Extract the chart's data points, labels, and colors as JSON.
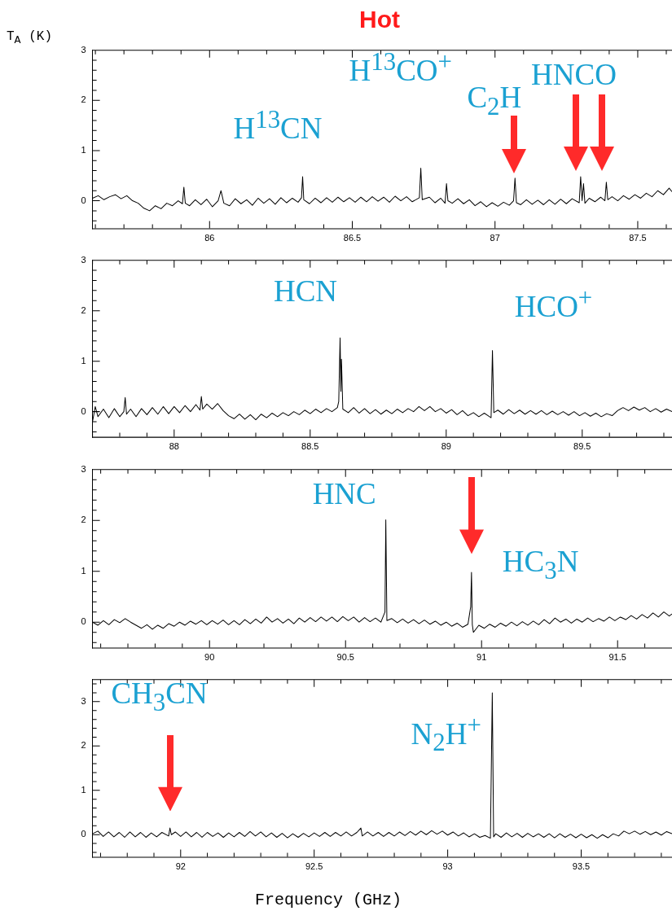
{
  "chart_data": [
    {
      "type": "line",
      "title": "Hot",
      "ylabel": "T$_{A}$ (K)",
      "color": "#000000",
      "marker": "none",
      "grid": false,
      "xlim": [
        85.59,
        87.62
      ],
      "ylim": [
        -0.55,
        3
      ],
      "xticks": [
        {
          "value": 85.6,
          "label": null
        },
        {
          "value": 85.7,
          "label": null
        },
        {
          "value": 85.8,
          "label": null
        },
        {
          "value": 85.9,
          "label": null
        },
        86,
        {
          "value": 86.1,
          "label": null
        },
        {
          "value": 86.2,
          "label": null
        },
        {
          "value": 86.3,
          "label": null
        },
        {
          "value": 86.4,
          "label": null
        },
        86.5,
        {
          "value": 86.6,
          "label": null
        },
        {
          "value": 86.7,
          "label": null
        },
        {
          "value": 86.8,
          "label": null
        },
        {
          "value": 86.9,
          "label": null
        },
        87,
        {
          "value": 87.1,
          "label": null
        },
        {
          "value": 87.2,
          "label": null
        },
        {
          "value": 87.3,
          "label": null
        },
        {
          "value": 87.4,
          "label": null
        },
        87.5,
        {
          "value": 87.6,
          "label": null
        }
      ],
      "yticks": [
        {
          "value": -0.4,
          "label": null
        },
        {
          "value": -0.2,
          "label": null
        },
        0,
        {
          "value": 0.2,
          "label": null
        },
        {
          "value": 0.4,
          "label": null
        },
        {
          "value": 0.6,
          "label": null
        },
        {
          "value": 0.8,
          "label": null
        },
        1,
        {
          "value": 1.2,
          "label": null
        },
        {
          "value": 1.4,
          "label": null
        },
        {
          "value": 1.6,
          "label": null
        },
        {
          "value": 1.8,
          "label": null
        },
        2,
        {
          "value": 2.2,
          "label": null
        },
        {
          "value": 2.4,
          "label": null
        },
        {
          "value": 2.6,
          "label": null
        },
        {
          "value": 2.8,
          "label": null
        },
        3
      ],
      "annotations": [
        "H$^{13}$CN",
        "H$^{13}$CO$^{+}$",
        "C$_{2}$H",
        "HNCO"
      ],
      "x": [
        85.59,
        85.61,
        85.63,
        85.65,
        85.67,
        85.69,
        85.71,
        85.73,
        85.75,
        85.77,
        85.79,
        85.81,
        85.83,
        85.85,
        85.87,
        85.89,
        85.905,
        85.91,
        85.915,
        85.93,
        85.95,
        85.97,
        85.99,
        86.01,
        86.03,
        86.04,
        86.05,
        86.07,
        86.09,
        86.11,
        86.13,
        86.15,
        86.17,
        86.19,
        86.21,
        86.23,
        86.25,
        86.27,
        86.29,
        86.31,
        86.322,
        86.326,
        86.33,
        86.35,
        86.37,
        86.39,
        86.41,
        86.43,
        86.45,
        86.47,
        86.49,
        86.51,
        86.53,
        86.55,
        86.57,
        86.59,
        86.61,
        86.63,
        86.65,
        86.67,
        86.69,
        86.71,
        86.735,
        86.74,
        86.745,
        86.77,
        86.79,
        86.81,
        86.825,
        86.83,
        86.835,
        86.85,
        86.87,
        86.89,
        86.91,
        86.93,
        86.95,
        86.97,
        86.99,
        87.01,
        87.03,
        87.05,
        87.065,
        87.07,
        87.075,
        87.09,
        87.11,
        87.13,
        87.15,
        87.17,
        87.19,
        87.21,
        87.23,
        87.25,
        87.27,
        87.295,
        87.3,
        87.305,
        87.31,
        87.315,
        87.33,
        87.35,
        87.37,
        87.385,
        87.39,
        87.395,
        87.41,
        87.43,
        87.45,
        87.47,
        87.49,
        87.51,
        87.53,
        87.55,
        87.57,
        87.59,
        87.61,
        87.62
      ],
      "values": [
        0.05,
        0.1,
        0.02,
        0.08,
        0.12,
        0.04,
        0.1,
        0,
        -0.05,
        -0.15,
        -0.2,
        -0.1,
        -0.16,
        -0.05,
        -0.1,
        0,
        -0.06,
        0.27,
        -0.05,
        -0.1,
        0.02,
        -0.08,
        0.03,
        -0.12,
        0,
        0.2,
        -0.05,
        -0.1,
        0.04,
        -0.06,
        0.02,
        -0.09,
        0.05,
        -0.05,
        0.04,
        -0.07,
        0.06,
        -0.04,
        0.05,
        -0.03,
        0.06,
        0.48,
        0.02,
        -0.06,
        0.05,
        -0.04,
        0.06,
        -0.03,
        0.07,
        -0.02,
        0.06,
        -0.03,
        0.07,
        -0.02,
        0.08,
        -0.01,
        0.07,
        -0.03,
        0.09,
        0,
        0.08,
        -0.02,
        0.06,
        0.65,
        0.02,
        0.07,
        -0.04,
        0.05,
        -0.05,
        0.34,
        0,
        -0.05,
        0.04,
        -0.06,
        0.02,
        -0.1,
        -0.02,
        -0.12,
        -0.04,
        -0.11,
        -0.03,
        -0.09,
        0,
        0.45,
        -0.04,
        -0.08,
        0.02,
        -0.07,
        0.01,
        -0.08,
        0.02,
        -0.07,
        0.03,
        -0.06,
        0.04,
        -0.04,
        0.48,
        0,
        0.34,
        -0.05,
        0.05,
        -0.02,
        0.07,
        0,
        0.37,
        0.02,
        0.08,
        0,
        0.1,
        0.03,
        0.12,
        0.05,
        0.15,
        0.08,
        0.2,
        0.12,
        0.25,
        0.18
      ]
    },
    {
      "type": "line",
      "color": "#000000",
      "marker": "none",
      "grid": false,
      "xlim": [
        87.7,
        89.83
      ],
      "ylim": [
        -0.5,
        3
      ],
      "xticks": [
        {
          "value": 87.7,
          "label": null
        },
        {
          "value": 87.8,
          "label": null
        },
        {
          "value": 87.9,
          "label": null
        },
        88,
        {
          "value": 88.1,
          "label": null
        },
        {
          "value": 88.2,
          "label": null
        },
        {
          "value": 88.3,
          "label": null
        },
        {
          "value": 88.4,
          "label": null
        },
        88.5,
        {
          "value": 88.6,
          "label": null
        },
        {
          "value": 88.7,
          "label": null
        },
        {
          "value": 88.8,
          "label": null
        },
        {
          "value": 88.9,
          "label": null
        },
        89,
        {
          "value": 89.1,
          "label": null
        },
        {
          "value": 89.2,
          "label": null
        },
        {
          "value": 89.3,
          "label": null
        },
        {
          "value": 89.4,
          "label": null
        },
        89.5,
        {
          "value": 89.6,
          "label": null
        },
        {
          "value": 89.7,
          "label": null
        },
        {
          "value": 89.8,
          "label": null
        }
      ],
      "yticks": [
        {
          "value": -0.4,
          "label": null
        },
        {
          "value": -0.2,
          "label": null
        },
        0,
        {
          "value": 0.2,
          "label": null
        },
        {
          "value": 0.4,
          "label": null
        },
        {
          "value": 0.6,
          "label": null
        },
        {
          "value": 0.8,
          "label": null
        },
        1,
        {
          "value": 1.2,
          "label": null
        },
        {
          "value": 1.4,
          "label": null
        },
        {
          "value": 1.6,
          "label": null
        },
        {
          "value": 1.8,
          "label": null
        },
        2,
        {
          "value": 2.2,
          "label": null
        },
        {
          "value": 2.4,
          "label": null
        },
        {
          "value": 2.6,
          "label": null
        },
        {
          "value": 2.8,
          "label": null
        },
        3
      ],
      "annotations": [
        "HCN",
        "HCO$^{+}$"
      ],
      "x": [
        87.7,
        87.71,
        87.72,
        87.74,
        87.76,
        87.78,
        87.8,
        87.815,
        87.82,
        87.825,
        87.84,
        87.86,
        87.88,
        87.9,
        87.92,
        87.94,
        87.96,
        87.98,
        88,
        88.02,
        88.04,
        88.06,
        88.08,
        88.095,
        88.1,
        88.105,
        88.12,
        88.14,
        88.16,
        88.18,
        88.2,
        88.22,
        88.24,
        88.26,
        88.28,
        88.3,
        88.32,
        88.34,
        88.36,
        88.38,
        88.4,
        88.42,
        88.44,
        88.46,
        88.48,
        88.5,
        88.52,
        88.54,
        88.56,
        88.58,
        88.6,
        88.605,
        88.61,
        88.613,
        88.615,
        88.62,
        88.64,
        88.66,
        88.68,
        88.7,
        88.72,
        88.74,
        88.76,
        88.78,
        88.8,
        88.82,
        88.84,
        88.86,
        88.88,
        88.9,
        88.92,
        88.94,
        88.96,
        88.98,
        89,
        89.02,
        89.04,
        89.06,
        89.08,
        89.1,
        89.12,
        89.14,
        89.165,
        89.17,
        89.175,
        89.19,
        89.21,
        89.23,
        89.25,
        89.27,
        89.29,
        89.31,
        89.33,
        89.35,
        89.37,
        89.39,
        89.41,
        89.43,
        89.45,
        89.47,
        89.49,
        89.51,
        89.53,
        89.55,
        89.57,
        89.59,
        89.61,
        89.63,
        89.65,
        89.67,
        89.69,
        89.71,
        89.73,
        89.75,
        89.77,
        89.79,
        89.81,
        89.83
      ],
      "values": [
        -0.2,
        0.1,
        -0.1,
        0.05,
        -0.12,
        0.06,
        -0.1,
        0,
        0.28,
        -0.05,
        0.05,
        -0.1,
        0.06,
        -0.06,
        0.08,
        -0.05,
        0.1,
        -0.04,
        0.1,
        -0.02,
        0.12,
        0,
        0.14,
        0.03,
        0.3,
        0.05,
        0.15,
        0.05,
        0.16,
        0.02,
        -0.08,
        -0.14,
        -0.05,
        -0.15,
        -0.06,
        -0.16,
        -0.05,
        -0.12,
        -0.03,
        -0.1,
        -0.02,
        -0.08,
        0,
        -0.06,
        0.03,
        -0.04,
        0.05,
        -0.02,
        0.06,
        0,
        0.08,
        0.2,
        1.46,
        0.4,
        1.04,
        0.05,
        -0.02,
        0.08,
        -0.03,
        0.06,
        -0.04,
        0.04,
        -0.05,
        0.03,
        -0.04,
        0.05,
        -0.02,
        0.06,
        0,
        0.1,
        0.02,
        0.1,
        0,
        0.06,
        -0.03,
        0.04,
        -0.06,
        0.02,
        -0.08,
        -0.02,
        -0.1,
        -0.03,
        -0.12,
        1.21,
        -0.02,
        0.03,
        -0.05,
        0.04,
        -0.04,
        0.03,
        -0.05,
        0.02,
        -0.05,
        0.02,
        -0.06,
        0.01,
        -0.06,
        0,
        -0.07,
        0,
        -0.08,
        -0.02,
        -0.09,
        -0.03,
        -0.1,
        -0.04,
        -0.08,
        0.02,
        0.08,
        0.02,
        0.09,
        0.03,
        0.08,
        0,
        0.06,
        -0.01,
        0.05,
        0
      ]
    },
    {
      "type": "line",
      "color": "#000000",
      "marker": "none",
      "grid": false,
      "xlim": [
        89.57,
        91.7
      ],
      "ylim": [
        -0.5,
        3
      ],
      "xticks": [
        {
          "value": 89.6,
          "label": null
        },
        {
          "value": 89.7,
          "label": null
        },
        {
          "value": 89.8,
          "label": null
        },
        {
          "value": 89.9,
          "label": null
        },
        90,
        {
          "value": 90.1,
          "label": null
        },
        {
          "value": 90.2,
          "label": null
        },
        {
          "value": 90.3,
          "label": null
        },
        {
          "value": 90.4,
          "label": null
        },
        90.5,
        {
          "value": 90.6,
          "label": null
        },
        {
          "value": 90.7,
          "label": null
        },
        {
          "value": 90.8,
          "label": null
        },
        {
          "value": 90.9,
          "label": null
        },
        91,
        {
          "value": 91.1,
          "label": null
        },
        {
          "value": 91.2,
          "label": null
        },
        {
          "value": 91.3,
          "label": null
        },
        {
          "value": 91.4,
          "label": null
        },
        91.5,
        {
          "value": 91.6,
          "label": null
        }
      ],
      "yticks": [
        {
          "value": -0.4,
          "label": null
        },
        {
          "value": -0.2,
          "label": null
        },
        0,
        {
          "value": 0.2,
          "label": null
        },
        {
          "value": 0.4,
          "label": null
        },
        {
          "value": 0.6,
          "label": null
        },
        {
          "value": 0.8,
          "label": null
        },
        1,
        {
          "value": 1.2,
          "label": null
        },
        {
          "value": 1.4,
          "label": null
        },
        {
          "value": 1.6,
          "label": null
        },
        {
          "value": 1.8,
          "label": null
        },
        2,
        {
          "value": 2.2,
          "label": null
        },
        {
          "value": 2.4,
          "label": null
        },
        {
          "value": 2.6,
          "label": null
        },
        {
          "value": 2.8,
          "label": null
        },
        3
      ],
      "annotations": [
        "HNC",
        "HC$_{3}$N"
      ],
      "x": [
        89.57,
        89.59,
        89.61,
        89.63,
        89.65,
        89.67,
        89.69,
        89.71,
        89.73,
        89.75,
        89.77,
        89.79,
        89.81,
        89.83,
        89.85,
        89.87,
        89.89,
        89.91,
        89.93,
        89.95,
        89.97,
        89.99,
        90.01,
        90.03,
        90.05,
        90.07,
        90.09,
        90.11,
        90.13,
        90.15,
        90.17,
        90.19,
        90.21,
        90.23,
        90.25,
        90.27,
        90.29,
        90.31,
        90.33,
        90.35,
        90.37,
        90.39,
        90.41,
        90.43,
        90.45,
        90.47,
        90.49,
        90.51,
        90.53,
        90.55,
        90.57,
        90.59,
        90.61,
        90.63,
        90.645,
        90.648,
        90.652,
        90.67,
        90.69,
        90.71,
        90.73,
        90.75,
        90.77,
        90.79,
        90.81,
        90.83,
        90.85,
        90.87,
        90.89,
        90.91,
        90.93,
        90.95,
        90.96,
        90.963,
        90.966,
        90.97,
        90.99,
        91.01,
        91.03,
        91.05,
        91.07,
        91.09,
        91.11,
        91.13,
        91.15,
        91.17,
        91.19,
        91.21,
        91.23,
        91.25,
        91.27,
        91.29,
        91.31,
        91.33,
        91.35,
        91.37,
        91.39,
        91.41,
        91.43,
        91.45,
        91.47,
        91.49,
        91.51,
        91.53,
        91.55,
        91.57,
        91.59,
        91.61,
        91.63,
        91.65,
        91.67,
        91.69,
        91.7
      ],
      "values": [
        0,
        -0.06,
        0.03,
        -0.05,
        0.05,
        -0.01,
        0.07,
        0,
        -0.06,
        -0.12,
        -0.05,
        -0.14,
        -0.06,
        -0.12,
        -0.03,
        -0.08,
        0,
        -0.06,
        0.02,
        -0.04,
        0.03,
        -0.05,
        0.03,
        -0.04,
        0.04,
        -0.05,
        0.03,
        -0.05,
        0.05,
        -0.03,
        0.06,
        -0.02,
        0.1,
        0,
        0.07,
        -0.02,
        0.06,
        -0.03,
        0.08,
        0,
        0.09,
        0.01,
        0.1,
        0.02,
        0.1,
        0.01,
        0.11,
        0.03,
        0.1,
        0,
        0.09,
        0.01,
        0.08,
        0,
        0.2,
        2.01,
        0.03,
        0.07,
        -0.01,
        0.06,
        -0.02,
        0.05,
        -0.03,
        0.04,
        -0.04,
        0.02,
        -0.06,
        0,
        -0.08,
        -0.02,
        -0.1,
        -0.04,
        0.3,
        0.98,
        -0.05,
        -0.2,
        -0.06,
        -0.12,
        -0.04,
        -0.1,
        -0.02,
        -0.08,
        0,
        -0.07,
        0.01,
        -0.06,
        0.02,
        -0.05,
        0.05,
        -0.03,
        0.08,
        0,
        0.06,
        -0.02,
        0.06,
        0,
        0.08,
        0.01,
        0.07,
        0.02,
        0.1,
        0.03,
        0.1,
        0.05,
        0.13,
        0.06,
        0.15,
        0.08,
        0.18,
        0.1,
        0.2,
        0.12,
        0.16
      ]
    },
    {
      "type": "line",
      "xlabel": "Frequency (GHz)",
      "color": "#000000",
      "marker": "none",
      "grid": false,
      "xlim": [
        91.67,
        93.84
      ],
      "ylim": [
        -0.5,
        3.5
      ],
      "xticks": [
        {
          "value": 91.7,
          "label": null
        },
        {
          "value": 91.8,
          "label": null
        },
        {
          "value": 91.9,
          "label": null
        },
        92,
        {
          "value": 92.1,
          "label": null
        },
        {
          "value": 92.2,
          "label": null
        },
        {
          "value": 92.3,
          "label": null
        },
        {
          "value": 92.4,
          "label": null
        },
        92.5,
        {
          "value": 92.6,
          "label": null
        },
        {
          "value": 92.7,
          "label": null
        },
        {
          "value": 92.8,
          "label": null
        },
        {
          "value": 92.9,
          "label": null
        },
        93,
        {
          "value": 93.1,
          "label": null
        },
        {
          "value": 93.2,
          "label": null
        },
        {
          "value": 93.3,
          "label": null
        },
        {
          "value": 93.4,
          "label": null
        },
        93.5,
        {
          "value": 93.6,
          "label": null
        },
        {
          "value": 93.7,
          "label": null
        },
        {
          "value": 93.8,
          "label": null
        }
      ],
      "yticks": [
        {
          "value": -0.4,
          "label": null
        },
        {
          "value": -0.2,
          "label": null
        },
        0,
        {
          "value": 0.2,
          "label": null
        },
        {
          "value": 0.4,
          "label": null
        },
        {
          "value": 0.6,
          "label": null
        },
        {
          "value": 0.8,
          "label": null
        },
        1,
        {
          "value": 1.2,
          "label": null
        },
        {
          "value": 1.4,
          "label": null
        },
        {
          "value": 1.6,
          "label": null
        },
        {
          "value": 1.8,
          "label": null
        },
        2,
        {
          "value": 2.2,
          "label": null
        },
        {
          "value": 2.4,
          "label": null
        },
        {
          "value": 2.6,
          "label": null
        },
        {
          "value": 2.8,
          "label": null
        },
        3,
        {
          "value": 3.2,
          "label": null
        },
        {
          "value": 3.4,
          "label": null
        }
      ],
      "annotations": [
        "CH$_{3}$CN",
        "N$_{2}$H$^{+}$"
      ],
      "x": [
        91.67,
        91.69,
        91.71,
        91.73,
        91.75,
        91.77,
        91.79,
        91.81,
        91.83,
        91.85,
        91.87,
        91.89,
        91.91,
        91.93,
        91.955,
        91.96,
        91.965,
        91.98,
        92,
        92.02,
        92.04,
        92.06,
        92.08,
        92.1,
        92.12,
        92.14,
        92.16,
        92.18,
        92.2,
        92.22,
        92.24,
        92.26,
        92.28,
        92.3,
        92.32,
        92.34,
        92.36,
        92.38,
        92.4,
        92.42,
        92.44,
        92.46,
        92.48,
        92.5,
        92.52,
        92.54,
        92.56,
        92.58,
        92.6,
        92.62,
        92.64,
        92.66,
        92.675,
        92.68,
        92.7,
        92.72,
        92.74,
        92.76,
        92.78,
        92.8,
        92.82,
        92.84,
        92.86,
        92.88,
        92.9,
        92.92,
        92.94,
        92.96,
        92.98,
        93,
        93.02,
        93.04,
        93.06,
        93.08,
        93.1,
        93.12,
        93.14,
        93.16,
        93.167,
        93.172,
        93.18,
        93.2,
        93.22,
        93.24,
        93.26,
        93.28,
        93.3,
        93.32,
        93.34,
        93.36,
        93.38,
        93.4,
        93.42,
        93.44,
        93.46,
        93.48,
        93.5,
        93.52,
        93.54,
        93.56,
        93.58,
        93.6,
        93.62,
        93.64,
        93.66,
        93.68,
        93.7,
        93.72,
        93.74,
        93.76,
        93.78,
        93.8,
        93.82,
        93.84
      ],
      "values": [
        0.02,
        0.08,
        -0.04,
        0.06,
        -0.05,
        0.05,
        -0.06,
        0.06,
        -0.05,
        0.05,
        -0.06,
        0.04,
        -0.05,
        0.05,
        -0.03,
        0.15,
        0,
        0.06,
        -0.04,
        0.06,
        -0.05,
        0.05,
        -0.06,
        0.05,
        -0.04,
        0.04,
        -0.06,
        0.04,
        -0.05,
        0.05,
        -0.04,
        0.07,
        -0.03,
        0.06,
        -0.05,
        0.04,
        -0.06,
        0.03,
        -0.07,
        0.02,
        -0.06,
        0.03,
        -0.05,
        0.04,
        -0.04,
        0.05,
        -0.04,
        0.05,
        -0.03,
        0.06,
        -0.03,
        0.05,
        0.15,
        -0.03,
        0.06,
        -0.03,
        0.05,
        -0.04,
        0.05,
        -0.03,
        0.06,
        -0.02,
        0.07,
        -0.01,
        0.08,
        0,
        0.09,
        0.01,
        0.08,
        -0.01,
        0.06,
        -0.03,
        0.04,
        -0.05,
        0.02,
        -0.06,
        -0.02,
        -0.08,
        3.2,
        -0.05,
        0.02,
        -0.06,
        0.04,
        -0.05,
        0.03,
        -0.06,
        0.03,
        -0.05,
        0.02,
        -0.06,
        0.02,
        -0.07,
        0.02,
        -0.06,
        0.01,
        -0.07,
        0.01,
        -0.07,
        0,
        -0.08,
        0,
        -0.07,
        0.02,
        -0.03,
        0.08,
        0.02,
        0.08,
        0.01,
        0.07,
        0,
        0.06,
        -0.01,
        0.07,
        0.02
      ]
    }
  ]
}
